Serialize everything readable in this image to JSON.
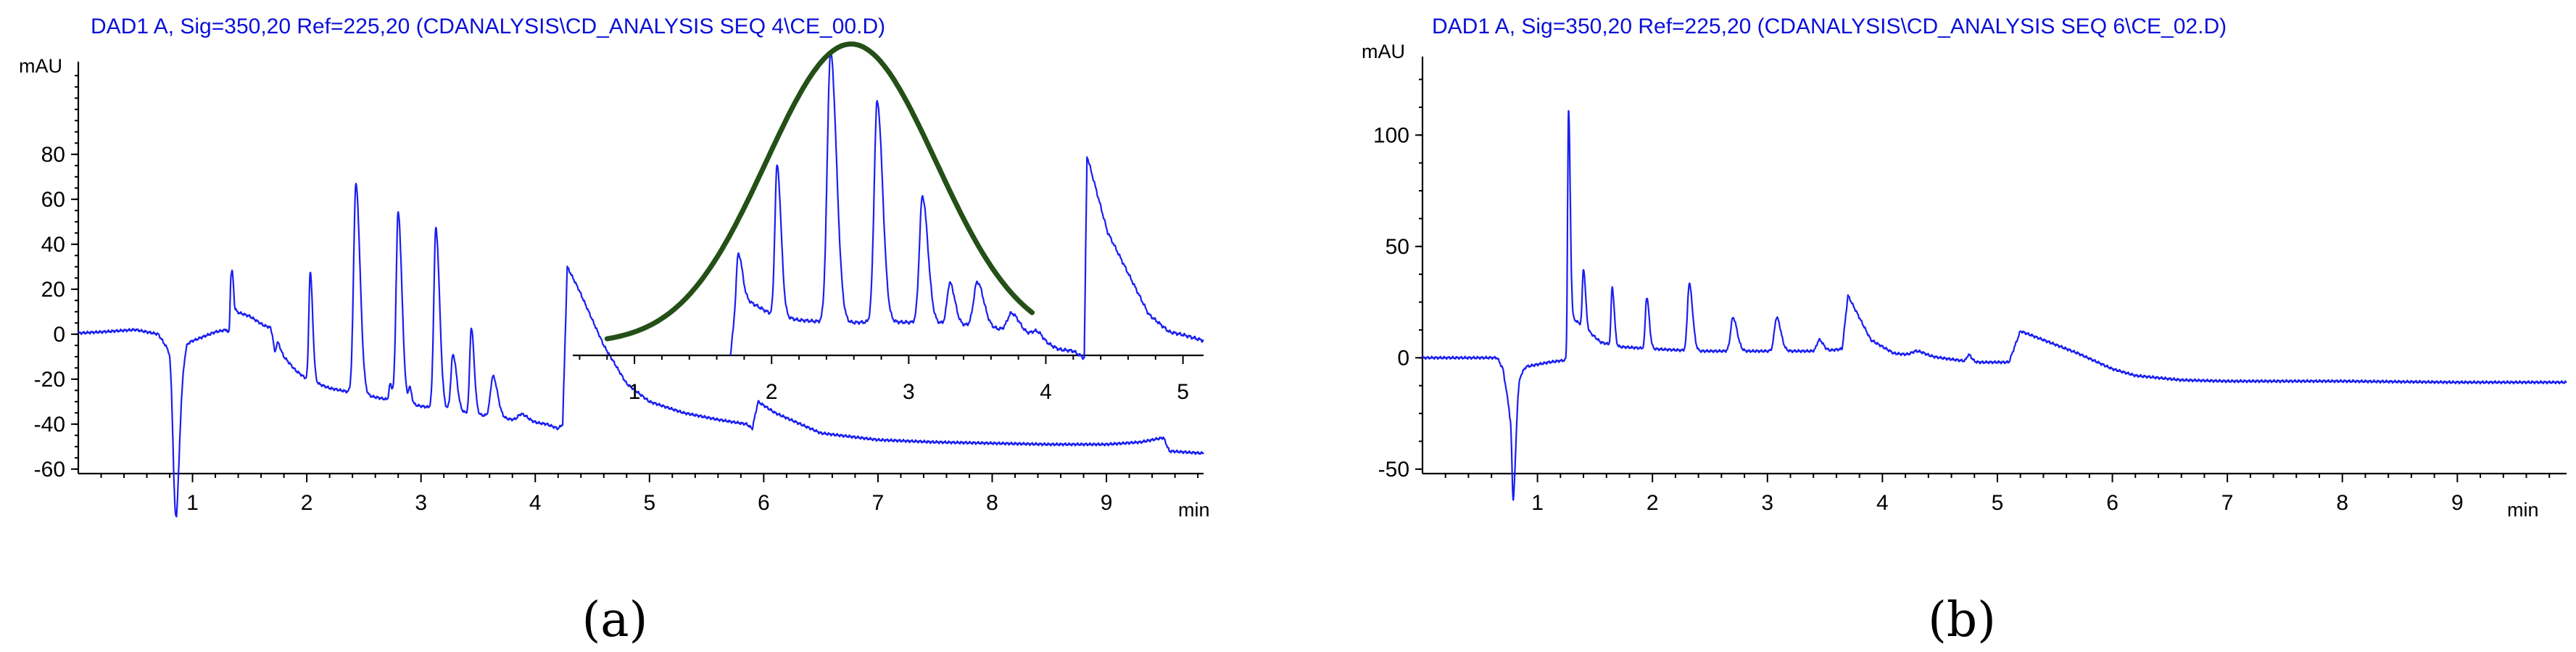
{
  "chart_data": [
    {
      "type": "line",
      "panel": "(a)",
      "title": "DAD1 A, Sig=350,20 Ref=225,20 (CDANALYSIS\\CD_ANALYSIS SEQ 4\\CE_00.D)",
      "ylabel": "mAU",
      "xlabel": "min",
      "xlim": [
        0,
        9.85
      ],
      "ylim": [
        -62,
        118
      ],
      "xticks": [
        1,
        2,
        3,
        4,
        5,
        6,
        7,
        8,
        9
      ],
      "yticks": [
        -60,
        -40,
        -20,
        0,
        20,
        40,
        60,
        80
      ],
      "series": [
        {
          "name": "DAD1 A chromatogram",
          "baseline": [
            [
              0,
              0.5
            ],
            [
              0.2,
              1
            ],
            [
              0.5,
              2
            ],
            [
              0.7,
              0
            ],
            [
              0.8,
              -8
            ],
            [
              0.86,
              -30
            ],
            [
              0.9,
              -12
            ],
            [
              0.95,
              -4
            ],
            [
              1.05,
              -2
            ],
            [
              1.2,
              1
            ],
            [
              1.3,
              2
            ],
            [
              1.34,
              -3
            ],
            [
              1.38,
              10
            ],
            [
              1.5,
              8
            ],
            [
              1.62,
              4
            ],
            [
              1.68,
              3
            ],
            [
              1.7,
              0
            ],
            [
              1.8,
              -10
            ],
            [
              1.9,
              -16
            ],
            [
              2.0,
              -20
            ],
            [
              2.2,
              -24
            ],
            [
              2.6,
              -28
            ],
            [
              3.0,
              -32
            ],
            [
              3.4,
              -35
            ],
            [
              3.8,
              -38
            ],
            [
              4.1,
              -40
            ],
            [
              4.2,
              -42
            ],
            [
              4.24,
              -40
            ],
            [
              4.28,
              30
            ],
            [
              4.38,
              20
            ],
            [
              4.6,
              -5
            ],
            [
              4.8,
              -22
            ],
            [
              5.0,
              -30
            ],
            [
              5.3,
              -35
            ],
            [
              5.6,
              -38
            ],
            [
              5.85,
              -40
            ],
            [
              5.9,
              -42
            ],
            [
              5.95,
              -30
            ],
            [
              6.1,
              -35
            ],
            [
              6.5,
              -44
            ],
            [
              7.0,
              -47
            ],
            [
              7.5,
              -48
            ],
            [
              8.0,
              -48.5
            ],
            [
              8.5,
              -49
            ],
            [
              9.0,
              -49
            ],
            [
              9.3,
              -48
            ],
            [
              9.5,
              -46
            ],
            [
              9.55,
              -52
            ],
            [
              9.85,
              -53
            ]
          ],
          "peaks": [
            {
              "t": 0.85,
              "h": -53,
              "w": 0.02
            },
            {
              "t": 1.34,
              "h": 54,
              "w": 0.008
            },
            {
              "t": 1.34,
              "h": -24,
              "w": 0.006
            },
            {
              "t": 1.72,
              "h": -6,
              "w": 0.01
            },
            {
              "t": 1.74,
              "h": 3,
              "w": 0.01
            },
            {
              "t": 2.03,
              "h": 48,
              "w": 0.012
            },
            {
              "t": 2.43,
              "h": 93,
              "w": 0.02
            },
            {
              "t": 2.73,
              "h": 7,
              "w": 0.01
            },
            {
              "t": 2.8,
              "h": 84,
              "w": 0.018
            },
            {
              "t": 2.9,
              "h": 7,
              "w": 0.01
            },
            {
              "t": 3.13,
              "h": 80,
              "w": 0.018
            },
            {
              "t": 3.28,
              "h": 25,
              "w": 0.018
            },
            {
              "t": 3.44,
              "h": 38,
              "w": 0.014
            },
            {
              "t": 3.63,
              "h": 18,
              "w": 0.022
            },
            {
              "t": 3.88,
              "h": 3,
              "w": 0.03
            }
          ],
          "legend": ""
        }
      ]
    },
    {
      "type": "line",
      "panel": "(a) inset",
      "title": "",
      "ylabel": "",
      "xlabel": "",
      "xlim": [
        0.55,
        5.15
      ],
      "xticks": [
        1,
        2,
        3,
        4,
        5
      ],
      "series": [
        {
          "name": "inset chromatogram",
          "baseline": [
            [
              1.7,
              0
            ],
            [
              1.75,
              22
            ],
            [
              1.85,
              18
            ],
            [
              2.0,
              14
            ],
            [
              2.2,
              12
            ],
            [
              2.5,
              11
            ],
            [
              2.8,
              11.5
            ],
            [
              3.2,
              11
            ],
            [
              3.5,
              10
            ],
            [
              3.8,
              8
            ],
            [
              3.95,
              6
            ],
            [
              4.0,
              4
            ],
            [
              4.1,
              2
            ],
            [
              4.2,
              1.5
            ],
            [
              4.28,
              -1
            ],
            [
              4.3,
              68
            ],
            [
              4.45,
              42
            ],
            [
              4.6,
              28
            ],
            [
              4.75,
              14
            ],
            [
              4.9,
              8
            ],
            [
              5.0,
              7
            ],
            [
              5.15,
              5
            ]
          ],
          "peaks": [
            {
              "t": 1.76,
              "h": 13,
              "w": 0.015
            },
            {
              "t": 2.04,
              "h": 51,
              "w": 0.016
            },
            {
              "t": 2.43,
              "h": 92,
              "w": 0.024
            },
            {
              "t": 2.77,
              "h": 75,
              "w": 0.022
            },
            {
              "t": 3.1,
              "h": 43,
              "w": 0.022
            },
            {
              "t": 3.3,
              "h": 14,
              "w": 0.02
            },
            {
              "t": 3.5,
              "h": 15,
              "w": 0.026
            },
            {
              "t": 3.75,
              "h": 6,
              "w": 0.03
            },
            {
              "t": 3.93,
              "h": 2,
              "w": 0.03
            }
          ]
        },
        {
          "name": "Gaussian envelope",
          "mean": 2.58,
          "sigma": 0.62,
          "amplitude": 102,
          "offset": 4,
          "range": [
            0.8,
            3.9
          ]
        }
      ]
    },
    {
      "type": "line",
      "panel": "(b)",
      "title": "DAD1 A, Sig=350,20 Ref=225,20 (CDANALYSIS\\CD_ANALYSIS SEQ 6\\CE_02.D)",
      "ylabel": "mAU",
      "xlabel": "min",
      "xlim": [
        0,
        9.95
      ],
      "ylim": [
        -52,
        132
      ],
      "xticks": [
        1,
        2,
        3,
        4,
        5,
        6,
        7,
        8,
        9
      ],
      "yticks": [
        -50,
        0,
        50,
        100
      ],
      "series": [
        {
          "name": "DAD1 A chromatogram",
          "baseline": [
            [
              0,
              0
            ],
            [
              0.5,
              0
            ],
            [
              0.65,
              0
            ],
            [
              0.7,
              -5
            ],
            [
              0.76,
              -25
            ],
            [
              0.8,
              -12
            ],
            [
              0.9,
              -4
            ],
            [
              1.1,
              -2
            ],
            [
              1.25,
              -1
            ],
            [
              1.3,
              18
            ],
            [
              1.4,
              14
            ],
            [
              1.55,
              7
            ],
            [
              1.7,
              5
            ],
            [
              2.0,
              4
            ],
            [
              2.4,
              3
            ],
            [
              2.8,
              3
            ],
            [
              3.2,
              3
            ],
            [
              3.5,
              3
            ],
            [
              3.65,
              4
            ],
            [
              3.7,
              28
            ],
            [
              3.9,
              8
            ],
            [
              4.1,
              2
            ],
            [
              4.5,
              0
            ],
            [
              4.8,
              -2
            ],
            [
              5.1,
              -2
            ],
            [
              5.2,
              12
            ],
            [
              5.4,
              8
            ],
            [
              5.7,
              2
            ],
            [
              6.0,
              -5
            ],
            [
              6.2,
              -8
            ],
            [
              6.6,
              -10
            ],
            [
              7.0,
              -10.5
            ],
            [
              8.0,
              -10.5
            ],
            [
              9.0,
              -11
            ],
            [
              9.95,
              -11
            ]
          ],
          "peaks": [
            {
              "t": 0.79,
              "h": -48,
              "w": 0.012
            },
            {
              "t": 1.27,
              "h": 104,
              "w": 0.008
            },
            {
              "t": 1.4,
              "h": 26,
              "w": 0.01
            },
            {
              "t": 1.65,
              "h": 26,
              "w": 0.01
            },
            {
              "t": 1.95,
              "h": 23,
              "w": 0.012
            },
            {
              "t": 2.32,
              "h": 30,
              "w": 0.016
            },
            {
              "t": 2.7,
              "h": 15,
              "w": 0.02
            },
            {
              "t": 3.08,
              "h": 15,
              "w": 0.02
            },
            {
              "t": 3.45,
              "h": 5,
              "w": 0.02
            },
            {
              "t": 4.3,
              "h": 2,
              "w": 0.04
            },
            {
              "t": 4.75,
              "h": 3,
              "w": 0.015
            }
          ],
          "legend": ""
        }
      ]
    }
  ],
  "captions": [
    "(a)",
    "(b)"
  ]
}
